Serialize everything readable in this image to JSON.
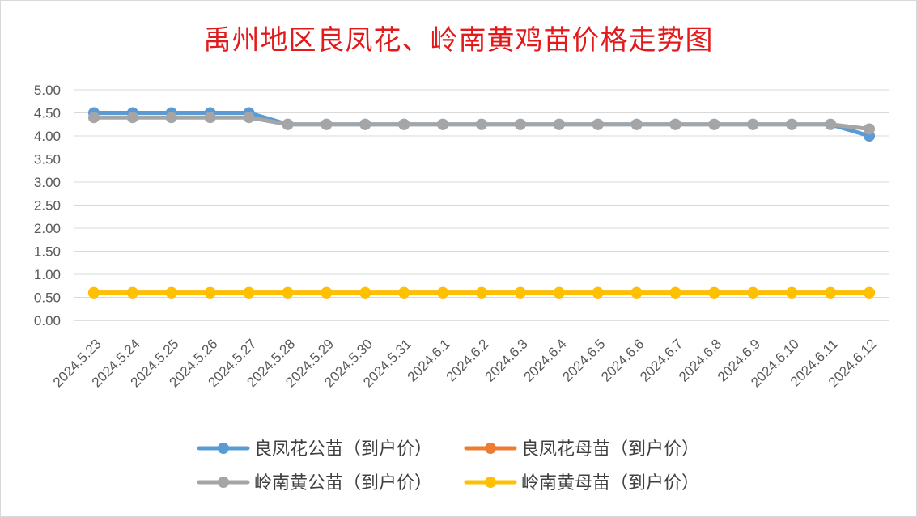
{
  "chart_data": {
    "type": "line",
    "title": "禹州地区良凤花、岭南黄鸡苗价格走势图",
    "xlabel": "",
    "ylabel": "",
    "ylim": [
      0,
      5
    ],
    "ytick_step": 0.5,
    "ytick_decimals": 2,
    "grid": true,
    "legend_position": "bottom",
    "categories": [
      "2024.5.23",
      "2024.5.24",
      "2024.5.25",
      "2024.5.26",
      "2024.5.27",
      "2024.5.28",
      "2024.5.29",
      "2024.5.30",
      "2024.5.31",
      "2024.6.1",
      "2024.6.2",
      "2024.6.3",
      "2024.6.4",
      "2024.6.5",
      "2024.6.6",
      "2024.6.7",
      "2024.6.8",
      "2024.6.9",
      "2024.6.10",
      "2024.6.11",
      "2024.6.12"
    ],
    "series": [
      {
        "name": "良凤花公苗（到户价）",
        "color": "#5b9bd5",
        "values": [
          4.5,
          4.5,
          4.5,
          4.5,
          4.5,
          4.25,
          4.25,
          4.25,
          4.25,
          4.25,
          4.25,
          4.25,
          4.25,
          4.25,
          4.25,
          4.25,
          4.25,
          4.25,
          4.25,
          4.25,
          4.0
        ]
      },
      {
        "name": "良凤花母苗（到户价）",
        "color": "#ed7d31",
        "values": [
          0.6,
          0.6,
          0.6,
          0.6,
          0.6,
          0.6,
          0.6,
          0.6,
          0.6,
          0.6,
          0.6,
          0.6,
          0.6,
          0.6,
          0.6,
          0.6,
          0.6,
          0.6,
          0.6,
          0.6,
          0.6
        ]
      },
      {
        "name": "岭南黄公苗（到户价）",
        "color": "#a5a5a5",
        "values": [
          4.4,
          4.4,
          4.4,
          4.4,
          4.4,
          4.25,
          4.25,
          4.25,
          4.25,
          4.25,
          4.25,
          4.25,
          4.25,
          4.25,
          4.25,
          4.25,
          4.25,
          4.25,
          4.25,
          4.25,
          4.15
        ]
      },
      {
        "name": "岭南黄母苗（到户价）",
        "color": "#ffc000",
        "values": [
          0.6,
          0.6,
          0.6,
          0.6,
          0.6,
          0.6,
          0.6,
          0.6,
          0.6,
          0.6,
          0.6,
          0.6,
          0.6,
          0.6,
          0.6,
          0.6,
          0.6,
          0.6,
          0.6,
          0.6,
          0.6
        ]
      }
    ]
  }
}
